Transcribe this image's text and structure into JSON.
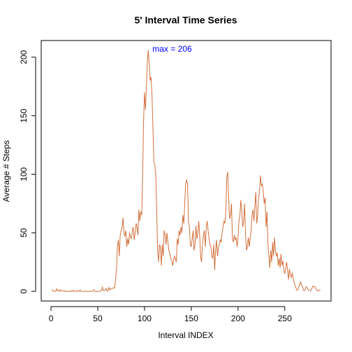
{
  "chart_data": {
    "type": "line",
    "title": "5' Interval Time Series",
    "x_label": "Interval INDEX",
    "y_label": "Average # Steps",
    "annotation": "max =  206",
    "x": [
      1,
      2,
      3,
      4,
      5,
      6,
      7,
      8,
      9,
      10,
      11,
      12,
      13,
      14,
      15,
      16,
      17,
      18,
      19,
      20,
      21,
      22,
      23,
      24,
      25,
      26,
      27,
      28,
      29,
      30,
      31,
      32,
      33,
      34,
      35,
      36,
      37,
      38,
      39,
      40,
      41,
      42,
      43,
      44,
      45,
      46,
      47,
      48,
      49,
      50,
      51,
      52,
      53,
      54,
      55,
      56,
      57,
      58,
      59,
      60,
      61,
      62,
      63,
      64,
      65,
      66,
      67,
      68,
      69,
      70,
      71,
      72,
      73,
      74,
      75,
      76,
      77,
      78,
      79,
      80,
      81,
      82,
      83,
      84,
      85,
      86,
      87,
      88,
      89,
      90,
      91,
      92,
      93,
      94,
      95,
      96,
      97,
      98,
      99,
      100,
      101,
      102,
      103,
      104,
      105,
      106,
      107,
      108,
      109,
      110,
      111,
      112,
      113,
      114,
      115,
      116,
      117,
      118,
      119,
      120,
      121,
      122,
      123,
      124,
      125,
      126,
      127,
      128,
      129,
      130,
      131,
      132,
      133,
      134,
      135,
      136,
      137,
      138,
      139,
      140,
      141,
      142,
      143,
      144,
      145,
      146,
      147,
      148,
      149,
      150,
      151,
      152,
      153,
      154,
      155,
      156,
      157,
      158,
      159,
      160,
      161,
      162,
      163,
      164,
      165,
      166,
      167,
      168,
      169,
      170,
      171,
      172,
      173,
      174,
      175,
      176,
      177,
      178,
      179,
      180,
      181,
      182,
      183,
      184,
      185,
      186,
      187,
      188,
      189,
      190,
      191,
      192,
      193,
      194,
      195,
      196,
      197,
      198,
      199,
      200,
      201,
      202,
      203,
      204,
      205,
      206,
      207,
      208,
      209,
      210,
      211,
      212,
      213,
      214,
      215,
      216,
      217,
      218,
      219,
      220,
      221,
      222,
      223,
      224,
      225,
      226,
      227,
      228,
      229,
      230,
      231,
      232,
      233,
      234,
      235,
      236,
      237,
      238,
      239,
      240,
      241,
      242,
      243,
      244,
      245,
      246,
      247,
      248,
      249,
      250,
      251,
      252,
      253,
      254,
      255,
      256,
      257,
      258,
      259,
      260,
      261,
      262,
      263,
      264,
      265,
      266,
      267,
      268,
      269,
      270,
      271,
      272,
      273,
      274,
      275,
      276,
      277,
      278,
      279,
      280,
      281,
      282,
      283,
      284,
      285,
      286,
      287,
      288
    ],
    "series": [
      {
        "name": "Average # Steps",
        "color": "#d2703c",
        "values": [
          1.7,
          0.3,
          0.1,
          0.2,
          0.1,
          2.1,
          0.5,
          0.9,
          0,
          1.5,
          0.3,
          0.1,
          0.3,
          0.7,
          0,
          0.1,
          0,
          0,
          0.4,
          0,
          0,
          0.5,
          0,
          1,
          0,
          0,
          0,
          0.8,
          0,
          0,
          1.2,
          0.3,
          0,
          0,
          0,
          0.2,
          0,
          0,
          0,
          0,
          0,
          0,
          0.3,
          0,
          0.6,
          1.4,
          0,
          0,
          0,
          0,
          0,
          0.2,
          0.4,
          0.9,
          3.5,
          0.5,
          0.7,
          1.2,
          2.5,
          0.1,
          0.5,
          3.3,
          1.2,
          2.2,
          2.3,
          2.4,
          3.3,
          2.9,
          10,
          18,
          38,
          44,
          30,
          48,
          52,
          55,
          63,
          50,
          47,
          52,
          38,
          45,
          40,
          50,
          46,
          45,
          52,
          55,
          44,
          50,
          58,
          55,
          48,
          70,
          60,
          68,
          65,
          100,
          145,
          170,
          155,
          175,
          195,
          206,
          195,
          180,
          183,
          167,
          140,
          110,
          108,
          100,
          70,
          35,
          25,
          40,
          38,
          22,
          40,
          30,
          52,
          48,
          40,
          50,
          42,
          35,
          32,
          28,
          27,
          22,
          26,
          30,
          28,
          25,
          45,
          40,
          52,
          48,
          55,
          50,
          65,
          58,
          75,
          92,
          95,
          92,
          60,
          55,
          40,
          38,
          45,
          52,
          35,
          40,
          56,
          45,
          50,
          60,
          48,
          30,
          25,
          40,
          48,
          52,
          38,
          55,
          60,
          52,
          45,
          40,
          38,
          30,
          28,
          40,
          18,
          35,
          44,
          30,
          38,
          40,
          44,
          42,
          50,
          55,
          60,
          58,
          70,
          98,
          102,
          80,
          62,
          65,
          75,
          45,
          42,
          48,
          44,
          46,
          38,
          45,
          60,
          65,
          78,
          68,
          55,
          60,
          75,
          50,
          35,
          38,
          46,
          38,
          45,
          52,
          65,
          70,
          60,
          72,
          85,
          58,
          65,
          80,
          85,
          99,
          90,
          92,
          85,
          75,
          80,
          55,
          68,
          40,
          30,
          20,
          35,
          25,
          42,
          30,
          46,
          35,
          30,
          33,
          22,
          28,
          20,
          32,
          22,
          26,
          18,
          15,
          20,
          25,
          18,
          10,
          19,
          14,
          12,
          16,
          11,
          8,
          5,
          3,
          1,
          1.5,
          4,
          6,
          8,
          5,
          4,
          1,
          0.5,
          2,
          4,
          3,
          1.5,
          0.8,
          0.5,
          0.8,
          2.5,
          4.5,
          4,
          4,
          3,
          1,
          0.3,
          0.9,
          1.2,
          0.5
        ]
      }
    ],
    "xlim": [
      -10.48,
      299.48
    ],
    "ylim": [
      -8.24,
      214.24
    ],
    "xticks": [
      0,
      50,
      100,
      150,
      200,
      250
    ],
    "yticks": [
      0,
      50,
      100,
      150,
      200
    ],
    "grid": false
  }
}
